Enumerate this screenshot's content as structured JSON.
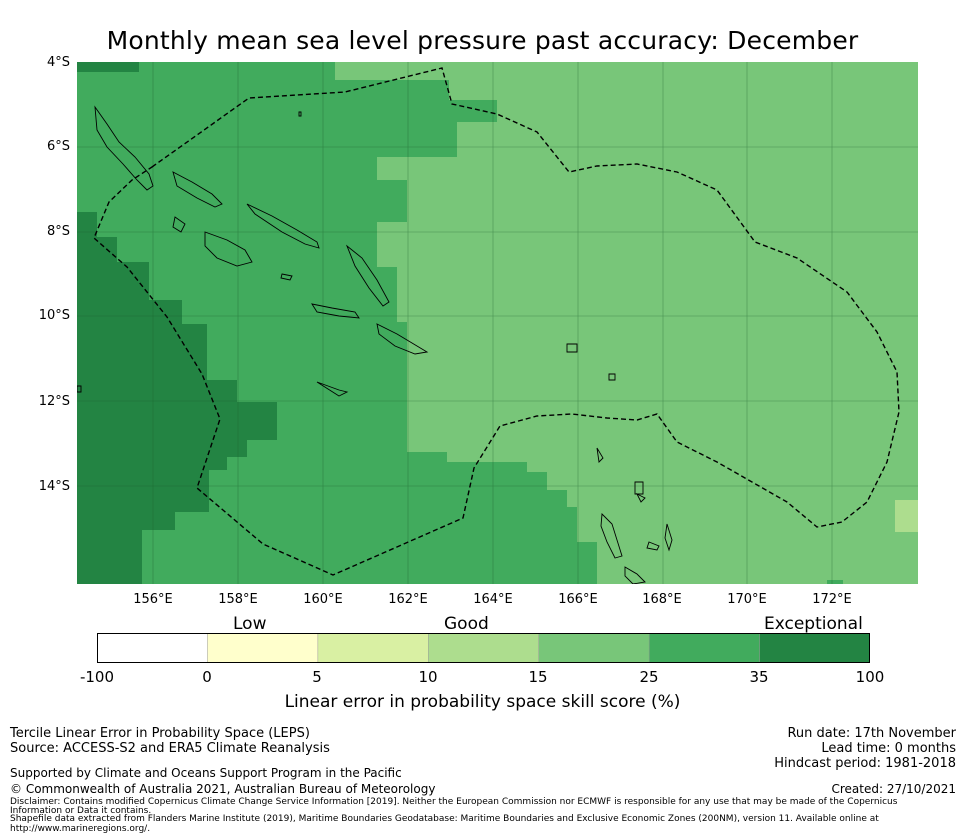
{
  "title": "Monthly mean sea level pressure past accuracy: December",
  "map": {
    "lat_labels": [
      "4°S",
      "6°S",
      "8°S",
      "10°S",
      "12°S",
      "14°S"
    ],
    "lon_labels": [
      "156°E",
      "158°E",
      "160°E",
      "162°E",
      "164°E",
      "166°E",
      "168°E",
      "170°E",
      "172°E"
    ],
    "colors": {
      "exceptional": "#238443",
      "strong": "#41ab5d",
      "good": "#78c679",
      "fair": "#addd8e",
      "low": "#d9f0a3",
      "poor": "#ffffcc",
      "none": "#ffffff",
      "eez_line": "#000000",
      "gridline": "#1a5a2a"
    }
  },
  "colorbar": {
    "category_labels": {
      "low": "Low",
      "good": "Good",
      "exceptional": "Exceptional"
    },
    "ticks": [
      "-100",
      "0",
      "5",
      "10",
      "15",
      "25",
      "35",
      "100"
    ],
    "segment_colors": [
      "#ffffff",
      "#ffffcc",
      "#d9f0a3",
      "#addd8e",
      "#78c679",
      "#41ab5d",
      "#238443"
    ],
    "label": "Linear error in probability space skill score (%)"
  },
  "footer": {
    "method": "Tercile Linear Error in Probability Space (LEPS)",
    "source": "Source: ACCESS-S2 and ERA5 Climate Reanalysis",
    "run_date": "Run date: 17th November",
    "lead_time": "Lead time: 0 months",
    "hindcast": "Hindcast period: 1981-2018",
    "support": "Supported by Climate and Oceans Support Program in the Pacific",
    "copyright": "© Commonwealth of Australia 2021, Australian Bureau of Meteorology",
    "created": "Created: 27/10/2021",
    "disclaimer_1": "Disclaimer: Contains modified Copernicus Climate Change Service Information [2019]. Neither the European Commission nor ECMWF is responsible for any use that may be made of the Copernicus",
    "disclaimer_2": "Information or Data it contains.",
    "shapefile_1": "Shapefile data extracted from Flanders Marine Institute (2019), Maritime Boundaries Geodatabase: Maritime Boundaries and Exclusive Economic Zones (200NM), version 11. Available online at",
    "shapefile_2": "http://www.marineregions.org/."
  }
}
